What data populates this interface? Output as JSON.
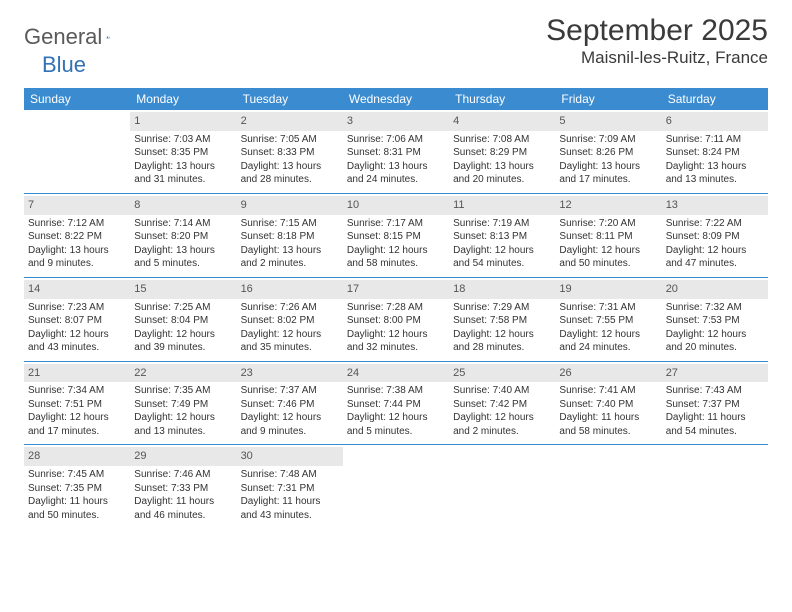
{
  "brand": {
    "part1": "General",
    "part2": "Blue"
  },
  "title": "September 2025",
  "location": "Maisnil-les-Ruitz, France",
  "colors": {
    "header_bg": "#3a8bcf",
    "header_text": "#ffffff",
    "daynum_bg": "#e8e8e8",
    "rule": "#3a8bcf",
    "brand_blue": "#3272b8",
    "body_text": "#333333"
  },
  "weekdays": [
    "Sunday",
    "Monday",
    "Tuesday",
    "Wednesday",
    "Thursday",
    "Friday",
    "Saturday"
  ],
  "weeks": [
    [
      {
        "day": "",
        "sunrise": "",
        "sunset": "",
        "daylight": ""
      },
      {
        "day": "1",
        "sunrise": "Sunrise: 7:03 AM",
        "sunset": "Sunset: 8:35 PM",
        "daylight": "Daylight: 13 hours and 31 minutes."
      },
      {
        "day": "2",
        "sunrise": "Sunrise: 7:05 AM",
        "sunset": "Sunset: 8:33 PM",
        "daylight": "Daylight: 13 hours and 28 minutes."
      },
      {
        "day": "3",
        "sunrise": "Sunrise: 7:06 AM",
        "sunset": "Sunset: 8:31 PM",
        "daylight": "Daylight: 13 hours and 24 minutes."
      },
      {
        "day": "4",
        "sunrise": "Sunrise: 7:08 AM",
        "sunset": "Sunset: 8:29 PM",
        "daylight": "Daylight: 13 hours and 20 minutes."
      },
      {
        "day": "5",
        "sunrise": "Sunrise: 7:09 AM",
        "sunset": "Sunset: 8:26 PM",
        "daylight": "Daylight: 13 hours and 17 minutes."
      },
      {
        "day": "6",
        "sunrise": "Sunrise: 7:11 AM",
        "sunset": "Sunset: 8:24 PM",
        "daylight": "Daylight: 13 hours and 13 minutes."
      }
    ],
    [
      {
        "day": "7",
        "sunrise": "Sunrise: 7:12 AM",
        "sunset": "Sunset: 8:22 PM",
        "daylight": "Daylight: 13 hours and 9 minutes."
      },
      {
        "day": "8",
        "sunrise": "Sunrise: 7:14 AM",
        "sunset": "Sunset: 8:20 PM",
        "daylight": "Daylight: 13 hours and 5 minutes."
      },
      {
        "day": "9",
        "sunrise": "Sunrise: 7:15 AM",
        "sunset": "Sunset: 8:18 PM",
        "daylight": "Daylight: 13 hours and 2 minutes."
      },
      {
        "day": "10",
        "sunrise": "Sunrise: 7:17 AM",
        "sunset": "Sunset: 8:15 PM",
        "daylight": "Daylight: 12 hours and 58 minutes."
      },
      {
        "day": "11",
        "sunrise": "Sunrise: 7:19 AM",
        "sunset": "Sunset: 8:13 PM",
        "daylight": "Daylight: 12 hours and 54 minutes."
      },
      {
        "day": "12",
        "sunrise": "Sunrise: 7:20 AM",
        "sunset": "Sunset: 8:11 PM",
        "daylight": "Daylight: 12 hours and 50 minutes."
      },
      {
        "day": "13",
        "sunrise": "Sunrise: 7:22 AM",
        "sunset": "Sunset: 8:09 PM",
        "daylight": "Daylight: 12 hours and 47 minutes."
      }
    ],
    [
      {
        "day": "14",
        "sunrise": "Sunrise: 7:23 AM",
        "sunset": "Sunset: 8:07 PM",
        "daylight": "Daylight: 12 hours and 43 minutes."
      },
      {
        "day": "15",
        "sunrise": "Sunrise: 7:25 AM",
        "sunset": "Sunset: 8:04 PM",
        "daylight": "Daylight: 12 hours and 39 minutes."
      },
      {
        "day": "16",
        "sunrise": "Sunrise: 7:26 AM",
        "sunset": "Sunset: 8:02 PM",
        "daylight": "Daylight: 12 hours and 35 minutes."
      },
      {
        "day": "17",
        "sunrise": "Sunrise: 7:28 AM",
        "sunset": "Sunset: 8:00 PM",
        "daylight": "Daylight: 12 hours and 32 minutes."
      },
      {
        "day": "18",
        "sunrise": "Sunrise: 7:29 AM",
        "sunset": "Sunset: 7:58 PM",
        "daylight": "Daylight: 12 hours and 28 minutes."
      },
      {
        "day": "19",
        "sunrise": "Sunrise: 7:31 AM",
        "sunset": "Sunset: 7:55 PM",
        "daylight": "Daylight: 12 hours and 24 minutes."
      },
      {
        "day": "20",
        "sunrise": "Sunrise: 7:32 AM",
        "sunset": "Sunset: 7:53 PM",
        "daylight": "Daylight: 12 hours and 20 minutes."
      }
    ],
    [
      {
        "day": "21",
        "sunrise": "Sunrise: 7:34 AM",
        "sunset": "Sunset: 7:51 PM",
        "daylight": "Daylight: 12 hours and 17 minutes."
      },
      {
        "day": "22",
        "sunrise": "Sunrise: 7:35 AM",
        "sunset": "Sunset: 7:49 PM",
        "daylight": "Daylight: 12 hours and 13 minutes."
      },
      {
        "day": "23",
        "sunrise": "Sunrise: 7:37 AM",
        "sunset": "Sunset: 7:46 PM",
        "daylight": "Daylight: 12 hours and 9 minutes."
      },
      {
        "day": "24",
        "sunrise": "Sunrise: 7:38 AM",
        "sunset": "Sunset: 7:44 PM",
        "daylight": "Daylight: 12 hours and 5 minutes."
      },
      {
        "day": "25",
        "sunrise": "Sunrise: 7:40 AM",
        "sunset": "Sunset: 7:42 PM",
        "daylight": "Daylight: 12 hours and 2 minutes."
      },
      {
        "day": "26",
        "sunrise": "Sunrise: 7:41 AM",
        "sunset": "Sunset: 7:40 PM",
        "daylight": "Daylight: 11 hours and 58 minutes."
      },
      {
        "day": "27",
        "sunrise": "Sunrise: 7:43 AM",
        "sunset": "Sunset: 7:37 PM",
        "daylight": "Daylight: 11 hours and 54 minutes."
      }
    ],
    [
      {
        "day": "28",
        "sunrise": "Sunrise: 7:45 AM",
        "sunset": "Sunset: 7:35 PM",
        "daylight": "Daylight: 11 hours and 50 minutes."
      },
      {
        "day": "29",
        "sunrise": "Sunrise: 7:46 AM",
        "sunset": "Sunset: 7:33 PM",
        "daylight": "Daylight: 11 hours and 46 minutes."
      },
      {
        "day": "30",
        "sunrise": "Sunrise: 7:48 AM",
        "sunset": "Sunset: 7:31 PM",
        "daylight": "Daylight: 11 hours and 43 minutes."
      },
      {
        "day": "",
        "sunrise": "",
        "sunset": "",
        "daylight": ""
      },
      {
        "day": "",
        "sunrise": "",
        "sunset": "",
        "daylight": ""
      },
      {
        "day": "",
        "sunrise": "",
        "sunset": "",
        "daylight": ""
      },
      {
        "day": "",
        "sunrise": "",
        "sunset": "",
        "daylight": ""
      }
    ]
  ]
}
